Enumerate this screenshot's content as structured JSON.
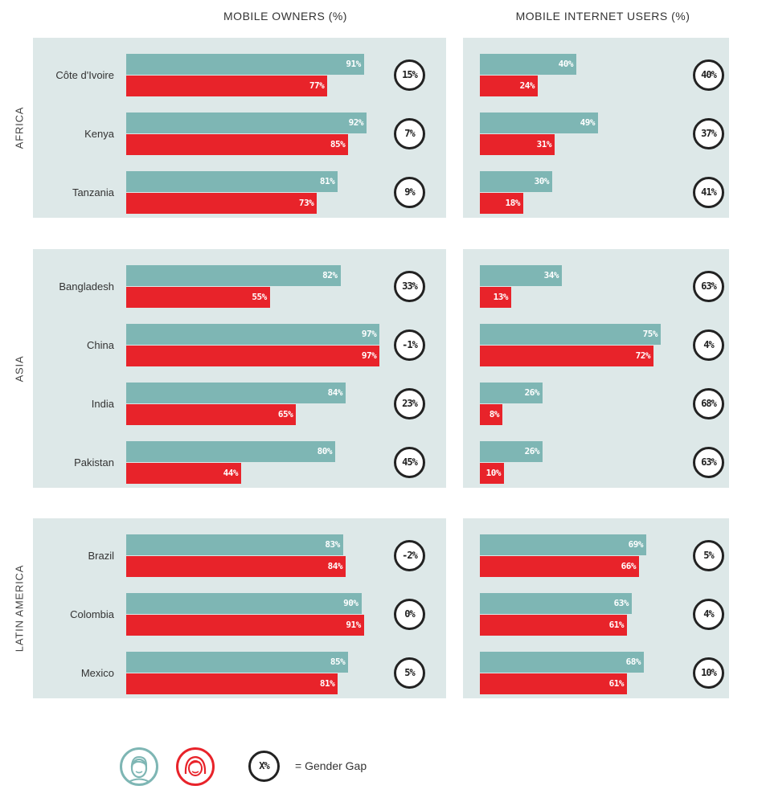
{
  "headers": {
    "owners": "MOBILE OWNERS (%)",
    "internet": "MOBILE INTERNET USERS (%)"
  },
  "colors": {
    "male": "#7eb6b4",
    "female": "#e8232a",
    "panel": "#dde8e8",
    "gap_ring": "#222222"
  },
  "legend": {
    "male_icon": "male-face-icon",
    "female_icon": "female-face-icon",
    "gap_symbol": "X%",
    "gap_text": "= Gender Gap"
  },
  "chart_data": {
    "type": "bar",
    "orientation": "horizontal",
    "regions": [
      {
        "name": "AFRICA",
        "countries": [
          {
            "name": "Côte d'Ivoire",
            "owners": {
              "male": 91,
              "female": 77,
              "gap": "15%"
            },
            "internet": {
              "male": 40,
              "female": 24,
              "gap": "40%"
            }
          },
          {
            "name": "Kenya",
            "owners": {
              "male": 92,
              "female": 85,
              "gap": "7%"
            },
            "internet": {
              "male": 49,
              "female": 31,
              "gap": "37%"
            }
          },
          {
            "name": "Tanzania",
            "owners": {
              "male": 81,
              "female": 73,
              "gap": "9%"
            },
            "internet": {
              "male": 30,
              "female": 18,
              "gap": "41%"
            }
          }
        ]
      },
      {
        "name": "ASIA",
        "countries": [
          {
            "name": "Bangladesh",
            "owners": {
              "male": 82,
              "female": 55,
              "gap": "33%"
            },
            "internet": {
              "male": 34,
              "female": 13,
              "gap": "63%"
            }
          },
          {
            "name": "China",
            "owners": {
              "male": 97,
              "female": 97,
              "gap": "-1%"
            },
            "internet": {
              "male": 75,
              "female": 72,
              "gap": "4%"
            }
          },
          {
            "name": "India",
            "owners": {
              "male": 84,
              "female": 65,
              "gap": "23%"
            },
            "internet": {
              "male": 26,
              "female": 8,
              "gap": "68%"
            }
          },
          {
            "name": "Pakistan",
            "owners": {
              "male": 80,
              "female": 44,
              "gap": "45%"
            },
            "internet": {
              "male": 26,
              "female": 10,
              "gap": "63%"
            }
          }
        ]
      },
      {
        "name": "LATIN AMERICA",
        "countries": [
          {
            "name": "Brazil",
            "owners": {
              "male": 83,
              "female": 84,
              "gap": "-2%"
            },
            "internet": {
              "male": 69,
              "female": 66,
              "gap": "5%"
            }
          },
          {
            "name": "Colombia",
            "owners": {
              "male": 90,
              "female": 91,
              "gap": "0%"
            },
            "internet": {
              "male": 63,
              "female": 61,
              "gap": "4%"
            }
          },
          {
            "name": "Mexico",
            "owners": {
              "male": 85,
              "female": 81,
              "gap": "5%"
            },
            "internet": {
              "male": 68,
              "female": 61,
              "gap": "10%"
            }
          }
        ]
      }
    ]
  }
}
